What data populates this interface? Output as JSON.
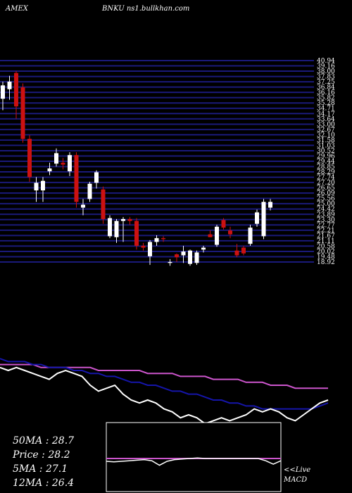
{
  "header": {
    "left_label": "AMEX",
    "right_label": "BNKU ns1.bullkhan.com"
  },
  "colors": {
    "background": "#000000",
    "grid": "#1a1a7a",
    "up_candle": "#ffffff",
    "down_candle": "#cc1111",
    "price_line": "#ffffff",
    "ma_short": "#ffffff",
    "ma_mid": "#1515aa",
    "ma_long": "#cc55cc",
    "macd_line": "#ffffff",
    "macd_signal": "#cc55cc",
    "panel_border": "#ffffff"
  },
  "chart_data": {
    "type": "candlestick",
    "ylim": [
      18.9,
      40.0
    ],
    "y_tick_labels": [
      "40.94",
      "39.16",
      "38.00",
      "37.83",
      "37.25",
      "36.84",
      "36.16",
      "35.82",
      "35.28",
      "34.71",
      "34.17",
      "33.64",
      "33.00",
      "32.67",
      "32.10",
      "31.58",
      "31.03",
      "30.52",
      "29.96",
      "29.44",
      "28.85",
      "28.29",
      "27.74",
      "27.20",
      "26.65",
      "26.09",
      "25.56",
      "25.00",
      "24.42",
      "23.89",
      "23.30",
      "22.77",
      "22.21",
      "21.67",
      "21.11",
      "20.58",
      "20.02",
      "19.48",
      "18.92"
    ],
    "candles": [
      {
        "o": 36.0,
        "h": 37.8,
        "l": 34.8,
        "c": 37.4
      },
      {
        "o": 37.0,
        "h": 38.4,
        "l": 35.9,
        "c": 37.8
      },
      {
        "o": 38.7,
        "h": 38.9,
        "l": 33.9,
        "c": 35.2
      },
      {
        "o": 37.2,
        "h": 37.6,
        "l": 31.4,
        "c": 31.8
      },
      {
        "o": 31.8,
        "h": 32.2,
        "l": 27.3,
        "c": 27.8
      },
      {
        "o": 26.4,
        "h": 27.8,
        "l": 25.2,
        "c": 27.2
      },
      {
        "o": 26.4,
        "h": 27.8,
        "l": 25.2,
        "c": 27.4
      },
      {
        "o": 28.4,
        "h": 29.3,
        "l": 28.0,
        "c": 28.7
      },
      {
        "o": 29.2,
        "h": 30.8,
        "l": 28.9,
        "c": 30.3
      },
      {
        "o": 29.3,
        "h": 29.8,
        "l": 28.6,
        "c": 29.1
      },
      {
        "o": 28.4,
        "h": 30.4,
        "l": 27.9,
        "c": 30.1
      },
      {
        "o": 30.1,
        "h": 30.4,
        "l": 24.6,
        "c": 25.2
      },
      {
        "o": 24.6,
        "h": 25.5,
        "l": 23.8,
        "c": 24.9
      },
      {
        "o": 25.5,
        "h": 27.3,
        "l": 25.2,
        "c": 27.1
      },
      {
        "o": 27.2,
        "h": 28.5,
        "l": 26.6,
        "c": 28.3
      },
      {
        "o": 26.5,
        "h": 26.8,
        "l": 22.9,
        "c": 23.4
      },
      {
        "o": 21.6,
        "h": 23.8,
        "l": 21.4,
        "c": 23.5
      },
      {
        "o": 21.5,
        "h": 23.4,
        "l": 20.9,
        "c": 23.2
      },
      {
        "o": 23.2,
        "h": 23.6,
        "l": 21.0,
        "c": 23.4
      },
      {
        "o": 23.4,
        "h": 23.6,
        "l": 22.8,
        "c": 23.2
      },
      {
        "o": 23.2,
        "h": 23.5,
        "l": 20.2,
        "c": 20.6
      },
      {
        "o": 20.6,
        "h": 20.9,
        "l": 20.1,
        "c": 20.4
      },
      {
        "o": 19.5,
        "h": 21.2,
        "l": 18.6,
        "c": 21.0
      },
      {
        "o": 21.0,
        "h": 21.7,
        "l": 20.6,
        "c": 21.4
      },
      {
        "o": 21.4,
        "h": 21.6,
        "l": 21.0,
        "c": 21.3
      },
      {
        "o": 18.8,
        "h": 19.2,
        "l": 18.5,
        "c": 18.9
      },
      {
        "o": 19.7,
        "h": 19.8,
        "l": 18.9,
        "c": 19.4
      },
      {
        "o": 19.6,
        "h": 20.6,
        "l": 18.8,
        "c": 20.0
      },
      {
        "o": 18.7,
        "h": 20.2,
        "l": 18.5,
        "c": 20.1
      },
      {
        "o": 18.8,
        "h": 20.1,
        "l": 18.6,
        "c": 19.9
      },
      {
        "o": 20.2,
        "h": 20.6,
        "l": 19.9,
        "c": 20.4
      },
      {
        "o": 21.8,
        "h": 22.2,
        "l": 21.5,
        "c": 21.5
      },
      {
        "o": 20.7,
        "h": 22.8,
        "l": 20.5,
        "c": 22.6
      },
      {
        "o": 23.3,
        "h": 23.5,
        "l": 22.3,
        "c": 22.5
      },
      {
        "o": 22.2,
        "h": 22.6,
        "l": 21.4,
        "c": 21.8
      },
      {
        "o": 20.1,
        "h": 20.8,
        "l": 19.4,
        "c": 19.6
      },
      {
        "o": 20.4,
        "h": 20.6,
        "l": 19.6,
        "c": 19.8
      },
      {
        "o": 20.8,
        "h": 22.8,
        "l": 20.6,
        "c": 22.5
      },
      {
        "o": 22.9,
        "h": 24.4,
        "l": 22.6,
        "c": 24.1
      },
      {
        "o": 21.6,
        "h": 25.5,
        "l": 21.3,
        "c": 25.2
      },
      {
        "o": 24.6,
        "h": 25.5,
        "l": 24.3,
        "c": 25.2
      }
    ],
    "indicators": {
      "close_line": [
        96,
        95,
        96,
        95,
        94,
        93,
        92,
        94,
        95,
        94,
        93,
        90,
        88,
        89,
        90,
        87,
        85,
        84,
        85,
        84,
        82,
        81,
        79,
        80,
        79,
        77,
        78,
        79,
        78,
        79,
        80,
        82,
        81,
        82,
        81,
        79,
        78,
        80,
        82,
        84,
        85
      ],
      "ma_mid_line": [
        99,
        98,
        98,
        98,
        97,
        97,
        96,
        96,
        96,
        95,
        95,
        94,
        94,
        93,
        93,
        92,
        91,
        91,
        90,
        90,
        89,
        88,
        88,
        87,
        87,
        86,
        85,
        85,
        84,
        84,
        83,
        83,
        82,
        82,
        82,
        82,
        82,
        82,
        82,
        83,
        84
      ],
      "ma_long_line": [
        97,
        97,
        97,
        97,
        97,
        96,
        96,
        96,
        96,
        96,
        96,
        96,
        95,
        95,
        95,
        95,
        95,
        95,
        94,
        94,
        94,
        94,
        93,
        93,
        93,
        93,
        92,
        92,
        92,
        92,
        91,
        91,
        91,
        90,
        90,
        90,
        89,
        89,
        89,
        89,
        89
      ]
    },
    "macd": {
      "macd_line": [
        -0.5,
        -0.6,
        -0.5,
        -0.4,
        -0.3,
        -0.2,
        -0.4,
        -1.2,
        -0.5,
        -0.2,
        -0.1,
        0.0,
        0.1,
        0.0,
        0.0,
        0.0,
        0.0,
        0.0,
        0.0,
        0.0,
        0.0,
        -0.4,
        -1.0,
        -0.4
      ],
      "signal_line": [
        0.0,
        0.0,
        0.0,
        0.0,
        0.0,
        0.0,
        0.0,
        0.0,
        0.0,
        0.0,
        0.0,
        0.0,
        0.0,
        0.0,
        0.0,
        0.0,
        0.0,
        0.0,
        0.0,
        0.0,
        0.0,
        0.0,
        0.0,
        0.0
      ]
    }
  },
  "stats": {
    "ma50": "50MA : 28.7",
    "price": "Price  : 28.2",
    "ma5": "5MA : 27.1",
    "ma12": "12MA : 26.4"
  },
  "macd_panel": {
    "live_label": "<<Live",
    "macd_label": "MACD"
  }
}
